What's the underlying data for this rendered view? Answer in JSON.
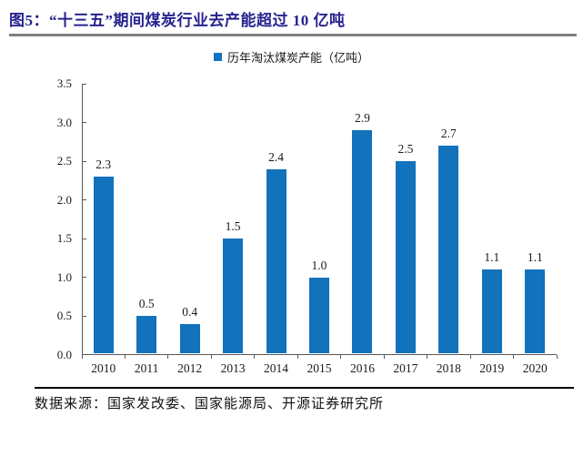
{
  "figure": {
    "title": "图5：“十三五”期间煤炭行业去产能超过 10 亿吨",
    "source": "数据来源：国家发改委、国家能源局、开源证券研究所"
  },
  "legend": {
    "label": "历年淘汰煤炭产能（亿吨）"
  },
  "colors": {
    "bar": "#1272BC",
    "title": "#28238F",
    "title_rule": "#7F7F7F",
    "source_rule": "#000000",
    "axis": "#595959"
  },
  "chart_data": {
    "type": "bar",
    "title": "历年淘汰煤炭产能（亿吨）",
    "legend_entries": [
      "历年淘汰煤炭产能（亿吨）"
    ],
    "legend_position": "top-center",
    "categories": [
      "2010",
      "2011",
      "2012",
      "2013",
      "2014",
      "2015",
      "2016",
      "2017",
      "2018",
      "2019",
      "2020"
    ],
    "values": [
      2.3,
      0.5,
      0.4,
      1.5,
      2.4,
      1.0,
      2.9,
      2.5,
      2.7,
      1.1,
      1.1
    ],
    "value_label_decimals": 1,
    "xlabel": "",
    "ylabel": "",
    "ylim": [
      0,
      3.5
    ],
    "y_ticks": [
      0.0,
      0.5,
      1.0,
      1.5,
      2.0,
      2.5,
      3.0,
      3.5
    ],
    "grid": false,
    "bar_color": "#1272BC"
  }
}
